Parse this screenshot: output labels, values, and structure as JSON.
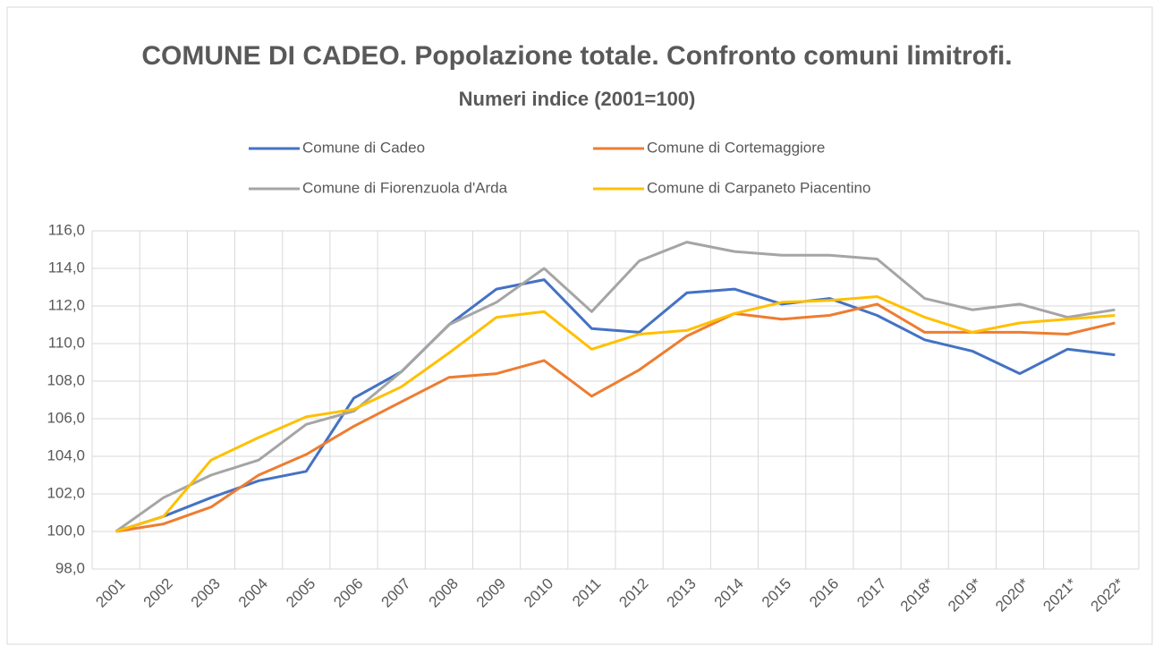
{
  "chart_data": {
    "type": "line",
    "title": "COMUNE DI CADEO. Popolazione totale. Confronto comuni limitrofi.",
    "subtitle": "Numeri indice (2001=100)",
    "categories": [
      "2001",
      "2002",
      "2003",
      "2004",
      "2005",
      "2006",
      "2007",
      "2008",
      "2009",
      "2010",
      "2011",
      "2012",
      "2013",
      "2014",
      "2015",
      "2016",
      "2017",
      "2018*",
      "2019*",
      "2020*",
      "2021*",
      "2022*"
    ],
    "series": [
      {
        "name": "Comune di Cadeo",
        "color": "#4472c4",
        "values": [
          100,
          100.8,
          101.8,
          102.7,
          103.2,
          107.1,
          108.5,
          111.0,
          112.9,
          113.4,
          110.8,
          110.6,
          112.7,
          112.9,
          112.1,
          112.4,
          111.5,
          110.2,
          109.6,
          108.4,
          109.7,
          109.4
        ]
      },
      {
        "name": "Comune di Cortemaggiore",
        "color": "#ed7d31",
        "values": [
          100,
          100.4,
          101.3,
          103.0,
          104.1,
          105.6,
          106.9,
          108.2,
          108.4,
          109.1,
          107.2,
          108.6,
          110.4,
          111.6,
          111.3,
          111.5,
          112.1,
          110.6,
          110.6,
          110.6,
          110.5,
          111.1
        ]
      },
      {
        "name": "Comune di Fiorenzuola d'Arda",
        "color": "#a5a5a5",
        "values": [
          100,
          101.8,
          103.0,
          103.8,
          105.7,
          106.4,
          108.5,
          111.0,
          112.2,
          114.0,
          111.7,
          114.4,
          115.4,
          114.9,
          114.7,
          114.7,
          114.5,
          112.4,
          111.8,
          112.1,
          111.4,
          111.8
        ]
      },
      {
        "name": "Comune di Carpaneto Piacentino",
        "color": "#ffc000",
        "values": [
          100,
          100.8,
          103.8,
          105.0,
          106.1,
          106.5,
          107.7,
          109.5,
          111.4,
          111.7,
          109.7,
          110.5,
          110.7,
          111.6,
          112.2,
          112.3,
          112.5,
          111.4,
          110.6,
          111.1,
          111.3,
          111.5
        ]
      }
    ],
    "ylim": [
      98,
      116
    ],
    "yticks": [
      {
        "value": 98,
        "label": "98,0"
      },
      {
        "value": 100,
        "label": "100,0"
      },
      {
        "value": 102,
        "label": "102,0"
      },
      {
        "value": 104,
        "label": "104,0"
      },
      {
        "value": 106,
        "label": "106,0"
      },
      {
        "value": 108,
        "label": "108,0"
      },
      {
        "value": 110,
        "label": "110,0"
      },
      {
        "value": 112,
        "label": "112,0"
      },
      {
        "value": 114,
        "label": "114,0"
      },
      {
        "value": 116,
        "label": "116,0"
      }
    ],
    "grid": true,
    "legend": "top"
  }
}
